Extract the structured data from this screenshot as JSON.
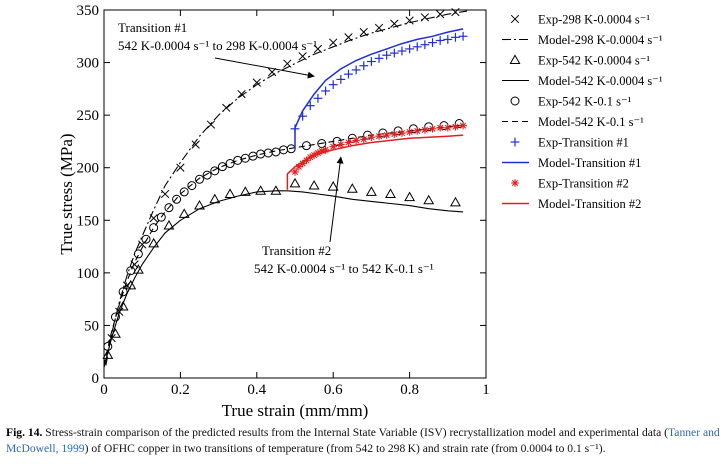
{
  "chart_data": {
    "type": "line",
    "xlabel": "True strain (mm/mm)",
    "ylabel": "True stress (MPa)",
    "xlim": [
      0,
      1
    ],
    "ylim": [
      0,
      350
    ],
    "xticks": [
      0,
      0.2,
      0.4,
      0.6,
      0.8,
      1
    ],
    "xtick_labels": [
      "0",
      "0.2",
      "0.4",
      "0.6",
      "0.8",
      "1"
    ],
    "yticks": [
      0,
      50,
      100,
      150,
      200,
      250,
      300,
      350
    ],
    "ytick_labels": [
      "0",
      "50",
      "100",
      "150",
      "200",
      "250",
      "300",
      "350"
    ],
    "legend_position": "right",
    "annotations": [
      {
        "line1": "Transition #1",
        "line2": "542 K-0.0004 s⁻¹ to 298 K-0.0004 s⁻¹",
        "arrow_to": [
          0.55,
          287
        ]
      },
      {
        "line1": "Transition #2",
        "line2": "542 K-0.0004 s⁻¹ to 542 K-0.1 s⁻¹",
        "arrow_to": [
          0.62,
          210
        ]
      }
    ],
    "series": [
      {
        "name": "Exp-298 K-0.0004 s⁻¹",
        "kind": "marker",
        "marker": "x",
        "color": "#000000",
        "x": [
          0.02,
          0.04,
          0.06,
          0.08,
          0.1,
          0.13,
          0.16,
          0.2,
          0.24,
          0.28,
          0.32,
          0.36,
          0.4,
          0.44,
          0.48,
          0.52,
          0.56,
          0.6,
          0.64,
          0.68,
          0.72,
          0.76,
          0.8,
          0.84,
          0.88,
          0.92
        ],
        "y": [
          38,
          63,
          88,
          108,
          127,
          152,
          175,
          200,
          222,
          241,
          257,
          270,
          281,
          291,
          299,
          306,
          313,
          319,
          324,
          329,
          333,
          337,
          340,
          343,
          346,
          348
        ]
      },
      {
        "name": "Model-298 K-0.0004 s⁻¹",
        "kind": "line",
        "dash": "9 3 2 3",
        "color": "#000000",
        "x": [
          0.005,
          0.02,
          0.04,
          0.06,
          0.08,
          0.1,
          0.13,
          0.16,
          0.2,
          0.25,
          0.3,
          0.35,
          0.4,
          0.45,
          0.5,
          0.55,
          0.6,
          0.65,
          0.7,
          0.75,
          0.8,
          0.85,
          0.9,
          0.95
        ],
        "y": [
          12,
          42,
          72,
          97,
          118,
          135,
          160,
          183,
          205,
          230,
          250,
          266,
          279,
          290,
          299,
          308,
          315,
          322,
          328,
          333,
          338,
          342,
          346,
          349
        ]
      },
      {
        "name": "Exp-542 K-0.0004 s⁻¹",
        "kind": "marker",
        "marker": "triangle",
        "color": "#000000",
        "x": [
          0.01,
          0.03,
          0.05,
          0.07,
          0.09,
          0.13,
          0.17,
          0.21,
          0.25,
          0.29,
          0.33,
          0.37,
          0.41,
          0.45,
          0.5,
          0.55,
          0.6,
          0.65,
          0.7,
          0.75,
          0.8,
          0.85,
          0.92
        ],
        "y": [
          22,
          42,
          68,
          88,
          103,
          128,
          145,
          156,
          164,
          170,
          175,
          177,
          178,
          178,
          185,
          183,
          182,
          180,
          177,
          175,
          172,
          169,
          167
        ]
      },
      {
        "name": "Model-542 K-0.0004 s⁻¹",
        "kind": "line",
        "dash": "",
        "color": "#000000",
        "x": [
          0,
          0.02,
          0.04,
          0.06,
          0.08,
          0.1,
          0.13,
          0.16,
          0.2,
          0.25,
          0.3,
          0.35,
          0.4,
          0.45,
          0.48,
          0.52,
          0.56,
          0.6,
          0.65,
          0.7,
          0.75,
          0.8,
          0.85,
          0.9,
          0.94
        ],
        "y": [
          10,
          38,
          62,
          80,
          95,
          108,
          124,
          138,
          150,
          161,
          168,
          173,
          177,
          178,
          178,
          177,
          175,
          173,
          170,
          168,
          166,
          164,
          161,
          159,
          158
        ]
      },
      {
        "name": "Exp-542 K-0.1 s⁻¹",
        "kind": "marker",
        "marker": "circle",
        "color": "#000000",
        "x": [
          0.01,
          0.03,
          0.05,
          0.07,
          0.09,
          0.11,
          0.13,
          0.15,
          0.17,
          0.19,
          0.21,
          0.23,
          0.25,
          0.27,
          0.29,
          0.31,
          0.33,
          0.35,
          0.37,
          0.39,
          0.41,
          0.43,
          0.45,
          0.47,
          0.49,
          0.53,
          0.57,
          0.61,
          0.65,
          0.69,
          0.73,
          0.77,
          0.81,
          0.85,
          0.89,
          0.93
        ],
        "y": [
          30,
          58,
          82,
          102,
          118,
          132,
          143,
          153,
          162,
          170,
          177,
          183,
          189,
          193,
          197,
          201,
          204,
          207,
          209,
          211,
          213,
          214,
          215,
          217,
          218,
          221,
          223,
          225,
          228,
          231,
          233,
          235,
          237,
          239,
          240,
          242
        ]
      },
      {
        "name": "Model-542 K-0.1 s⁻¹",
        "kind": "line",
        "dash": "6 4",
        "color": "#000000",
        "x": [
          0,
          0.02,
          0.04,
          0.06,
          0.08,
          0.1,
          0.13,
          0.16,
          0.2,
          0.25,
          0.3,
          0.35,
          0.4,
          0.45,
          0.5,
          0.55,
          0.6,
          0.65,
          0.7,
          0.75,
          0.8,
          0.85,
          0.9,
          0.95
        ],
        "y": [
          12,
          44,
          70,
          92,
          110,
          124,
          143,
          158,
          175,
          190,
          200,
          207,
          212,
          216,
          219,
          222,
          225,
          228,
          231,
          233,
          235,
          237,
          239,
          241
        ]
      },
      {
        "name": "Exp-Transition #1",
        "kind": "marker",
        "marker": "plus",
        "color": "#1f2fd8",
        "x": [
          0.5,
          0.52,
          0.54,
          0.56,
          0.58,
          0.6,
          0.62,
          0.64,
          0.66,
          0.68,
          0.7,
          0.72,
          0.74,
          0.76,
          0.78,
          0.8,
          0.82,
          0.84,
          0.86,
          0.88,
          0.9,
          0.92,
          0.94
        ],
        "y": [
          237,
          249,
          259,
          266,
          273,
          279,
          284,
          289,
          293,
          297,
          301,
          304,
          307,
          309,
          311,
          313,
          315,
          317,
          319,
          321,
          322,
          324,
          325
        ]
      },
      {
        "name": "Model-Transition #1",
        "kind": "line",
        "dash": "",
        "color": "#1f2fd8",
        "x": [
          0.5,
          0.5,
          0.52,
          0.55,
          0.58,
          0.62,
          0.66,
          0.7,
          0.74,
          0.78,
          0.82,
          0.86,
          0.9,
          0.94
        ],
        "y": [
          218,
          238,
          254,
          270,
          283,
          294,
          302,
          308,
          313,
          318,
          322,
          325,
          329,
          332
        ]
      },
      {
        "name": "Exp-Transition #2",
        "kind": "marker",
        "marker": "asterisk",
        "color": "#e21f1f",
        "x": [
          0.5,
          0.51,
          0.52,
          0.53,
          0.54,
          0.55,
          0.56,
          0.57,
          0.58,
          0.6,
          0.62,
          0.64,
          0.66,
          0.68,
          0.7,
          0.72,
          0.74,
          0.76,
          0.78,
          0.8,
          0.82,
          0.84,
          0.86,
          0.88,
          0.9,
          0.92,
          0.94
        ],
        "y": [
          196,
          201,
          204,
          207,
          210,
          212,
          214,
          216,
          217,
          220,
          222,
          224,
          226,
          227,
          229,
          230,
          231,
          232,
          233,
          234,
          235,
          236,
          237,
          238,
          238,
          239,
          240
        ]
      },
      {
        "name": "Model-Transition #2",
        "kind": "line",
        "dash": "",
        "color": "#e21f1f",
        "x": [
          0.48,
          0.48,
          0.5,
          0.53,
          0.56,
          0.6,
          0.65,
          0.7,
          0.75,
          0.8,
          0.85,
          0.9,
          0.94
        ],
        "y": [
          179,
          194,
          201,
          208,
          213,
          217,
          221,
          224,
          226,
          228,
          229,
          230,
          231
        ]
      }
    ]
  },
  "caption": {
    "label": "Fig. 14.",
    "text_before_ref": " Stress-strain comparison of the predicted results from the Internal State Variable (ISV) recrystallization model and experimental data (",
    "ref": "Tanner and McDowell, 1999",
    "text_after_ref": ") of OFHC copper in two transitions of temperature (from 542 to 298 K) and strain rate (from 0.0004 to 0.1 s⁻¹)."
  }
}
